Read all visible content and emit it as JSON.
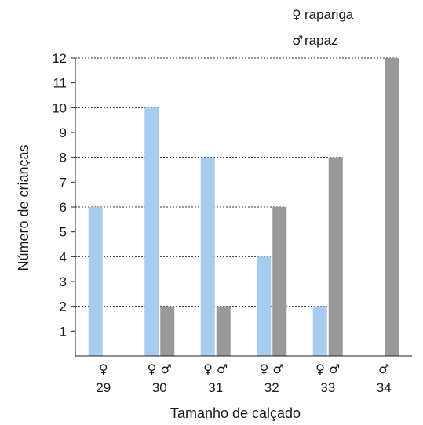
{
  "chart_data": {
    "type": "bar",
    "categories": [
      "29",
      "30",
      "31",
      "32",
      "33",
      "34"
    ],
    "category_symbols": [
      "♀",
      "♀ ♂",
      "♀ ♂",
      "♀ ♂",
      "♀ ♂",
      "♂"
    ],
    "series": [
      {
        "name": "rapariga",
        "symbol": "♀",
        "color": "#a6cdf0",
        "values": [
          6,
          10,
          8,
          4,
          2,
          null
        ]
      },
      {
        "name": "rapaz",
        "symbol": "♂",
        "color": "#999999",
        "values": [
          null,
          2,
          2,
          6,
          8,
          12
        ]
      }
    ],
    "xlabel": "Tamanho de calçado",
    "ylabel": "Número de crianças",
    "ylim": [
      0,
      12
    ],
    "yticks": [
      1,
      2,
      3,
      4,
      5,
      6,
      7,
      8,
      9,
      10,
      11,
      12
    ],
    "grid": "dotted lines from bar tops to y-axis",
    "legend_position": "top-right",
    "legend": [
      {
        "symbol": "♀",
        "label": "rapariga"
      },
      {
        "symbol": "♂",
        "label": "rapaz"
      }
    ]
  }
}
